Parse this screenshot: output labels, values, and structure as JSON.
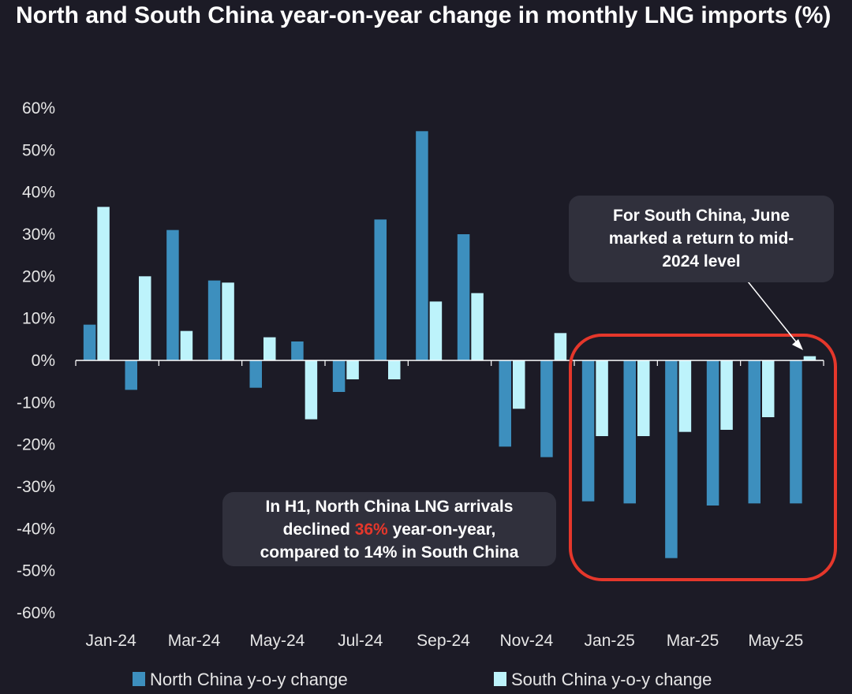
{
  "title": "North and South China year-on-year change in monthly LNG imports (%)",
  "chart_data": {
    "type": "bar",
    "title": "North and South China year-on-year change in monthly LNG imports (%)",
    "categories": [
      "Jan-24",
      "Feb-24",
      "Mar-24",
      "Apr-24",
      "May-24",
      "Jun-24",
      "Jul-24",
      "Aug-24",
      "Sep-24",
      "Oct-24",
      "Nov-24",
      "Dec-24",
      "Jan-25",
      "Feb-25",
      "Mar-25",
      "Apr-25",
      "May-25",
      "Jun-25"
    ],
    "x_tick_labels": [
      "Jan-24",
      "Mar-24",
      "May-24",
      "Jul-24",
      "Sep-24",
      "Nov-24",
      "Jan-25",
      "Mar-25",
      "May-25"
    ],
    "series": [
      {
        "name": "North China y-o-y change",
        "color": "#3d8fbe",
        "values": [
          8.5,
          -7,
          31,
          19,
          -6.5,
          4.5,
          -7.5,
          33.5,
          54.5,
          30,
          -20.5,
          -23,
          -33.5,
          -34,
          -47,
          -34.5,
          -34,
          -34
        ]
      },
      {
        "name": "South China y-o-y change",
        "color": "#bdf3fb",
        "values": [
          36.5,
          20,
          7,
          18.5,
          5.5,
          -14,
          -4.5,
          -4.5,
          14,
          16,
          -11.5,
          6.5,
          -18,
          -18,
          -17,
          -16.5,
          -13.5,
          1
        ]
      }
    ],
    "y_tick_labels": [
      "60%",
      "50%",
      "40%",
      "30%",
      "20%",
      "10%",
      "0%",
      "-10%",
      "-20%",
      "-30%",
      "-40%",
      "-50%",
      "-60%"
    ],
    "ylim": [
      -60,
      60
    ],
    "grid": false,
    "legend_position": "bottom",
    "annotations": [
      {
        "text": "For South China, June marked a return to mid-2024 level",
        "points_to": "Jun-25"
      },
      {
        "text": "In H1, North China LNG arrivals declined 36% year-on-year, compared to 14% in South China",
        "highlight": "36%"
      }
    ],
    "highlight_region": {
      "from": "Jan-25",
      "to": "Jun-25",
      "color": "#e5372b"
    }
  },
  "callouts": {
    "south": {
      "line1": "For South China, June",
      "line2": "marked a return to mid-",
      "line3": "2024 level"
    },
    "north": {
      "line1": "In H1, North China LNG arrivals",
      "line2_pre": "declined ",
      "line2_hl": "36%",
      "line2_post": " year-on-year,",
      "line3": "compared to 14% in South China"
    }
  },
  "legend": {
    "north": "North China y-o-y change",
    "south": "South China y-o-y change"
  }
}
